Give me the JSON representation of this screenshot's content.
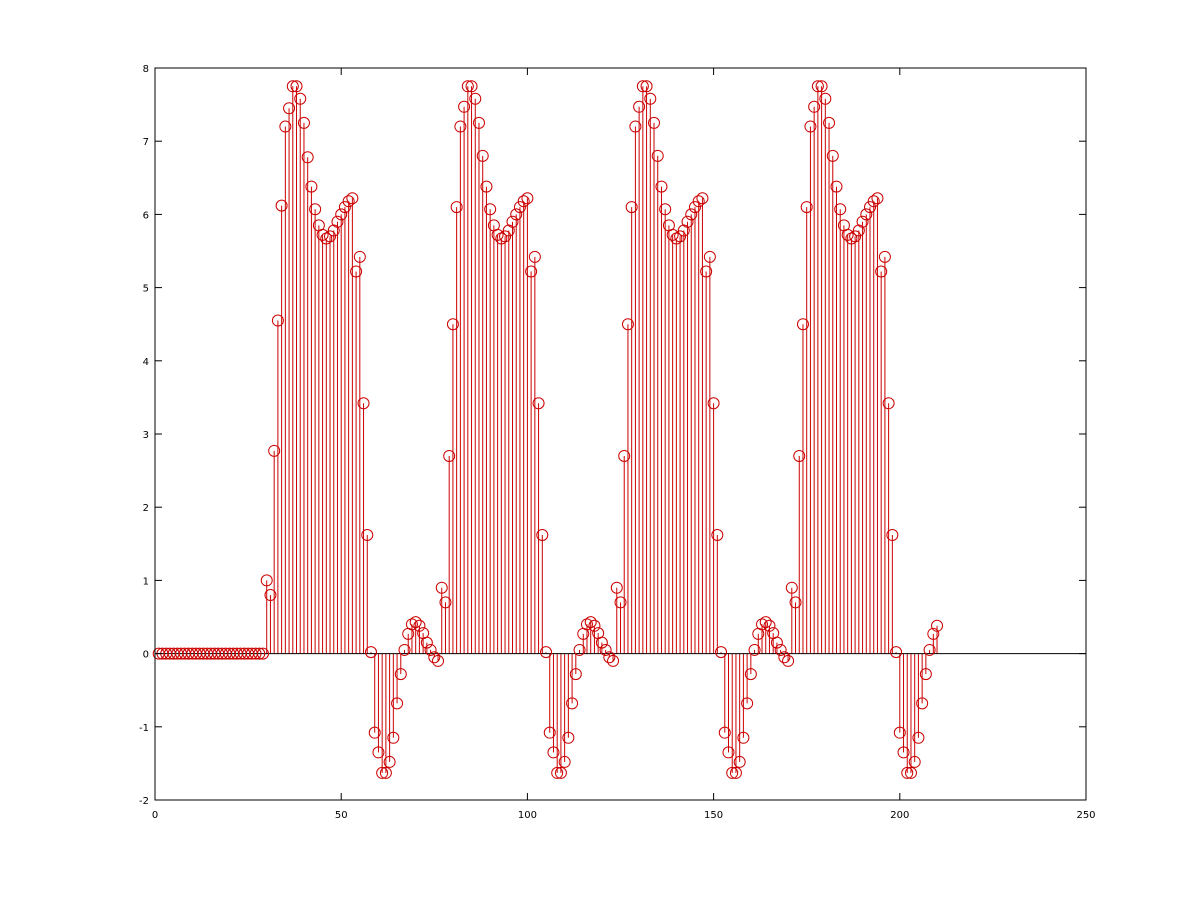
{
  "chart_data": {
    "type": "stem",
    "title": "",
    "xlabel": "",
    "ylabel": "",
    "xlim": [
      0,
      250
    ],
    "ylim": [
      -2,
      8
    ],
    "xticks": [
      0,
      50,
      100,
      150,
      200,
      250
    ],
    "xtick_labels": [
      "0",
      "50",
      "100",
      "150",
      "200",
      "250"
    ],
    "yticks": [
      -2,
      -1,
      0,
      1,
      2,
      3,
      4,
      5,
      6,
      7,
      8
    ],
    "ytick_labels": [
      "-2",
      "-1",
      "0",
      "1",
      "2",
      "3",
      "4",
      "5",
      "6",
      "7",
      "8"
    ],
    "grid": false,
    "legend": "none",
    "baseline": 0,
    "marker": "circle",
    "color": "#cc0000",
    "series": [
      {
        "x_start": 1,
        "x_step": 1,
        "values": [
          0,
          0,
          0,
          0,
          0,
          0,
          0,
          0,
          0,
          0,
          0,
          0,
          0,
          0,
          0,
          0,
          0,
          0,
          0,
          0,
          0,
          0,
          0,
          0,
          0,
          0,
          0,
          0,
          0,
          1.0,
          0.8,
          2.77,
          4.55,
          6.12,
          7.2,
          7.45,
          7.75,
          7.75,
          7.58,
          7.25,
          6.78,
          6.38,
          6.07,
          5.85,
          5.72,
          5.67,
          5.7,
          5.78,
          5.9,
          6.0,
          6.1,
          6.18,
          6.22,
          5.22,
          5.42,
          3.42,
          1.62,
          0.02,
          -1.08,
          -1.35,
          -1.63,
          -1.63,
          -1.48,
          -1.15,
          -0.68,
          -0.28,
          0.05,
          0.27,
          0.4,
          0.43,
          0.38,
          0.28,
          0.15,
          0.05,
          -0.05,
          -0.1,
          0.9,
          0.7,
          2.7,
          4.5,
          6.1,
          7.2,
          7.47,
          7.75,
          7.75,
          7.58,
          7.25,
          6.8,
          6.38,
          6.07,
          5.85,
          5.72,
          5.67,
          5.7,
          5.78,
          5.9,
          6.0,
          6.1,
          6.18,
          6.22,
          5.22,
          5.42,
          3.42,
          1.62,
          0.02,
          -1.08,
          -1.35,
          -1.63,
          -1.63,
          -1.48,
          -1.15,
          -0.68,
          -0.28,
          0.05,
          0.27,
          0.4,
          0.43,
          0.38,
          0.28,
          0.15,
          0.05,
          -0.05,
          -0.1,
          0.9,
          0.7,
          2.7,
          4.5,
          6.1,
          7.2,
          7.47,
          7.75,
          7.75,
          7.58,
          7.25,
          6.8,
          6.38,
          6.07,
          5.85,
          5.72,
          5.67,
          5.7,
          5.78,
          5.9,
          6.0,
          6.1,
          6.18,
          6.22,
          5.22,
          5.42,
          3.42,
          1.62,
          0.02,
          -1.08,
          -1.35,
          -1.63,
          -1.63,
          -1.48,
          -1.15,
          -0.68,
          -0.28,
          0.05,
          0.27,
          0.4,
          0.43,
          0.38,
          0.28,
          0.15,
          0.05,
          -0.05,
          -0.1,
          0.9,
          0.7,
          2.7,
          4.5,
          6.1,
          7.2,
          7.47,
          7.75,
          7.75,
          7.58,
          7.25,
          6.8,
          6.38,
          6.07,
          5.85,
          5.72,
          5.67,
          5.7,
          5.78,
          5.9,
          6.0,
          6.1,
          6.18,
          6.22,
          5.22,
          5.42,
          3.42,
          1.62,
          0.02,
          -1.08,
          -1.35,
          -1.63,
          -1.63,
          -1.48,
          -1.15,
          -0.68,
          -0.28,
          0.05,
          0.27,
          0.38
        ]
      }
    ]
  }
}
